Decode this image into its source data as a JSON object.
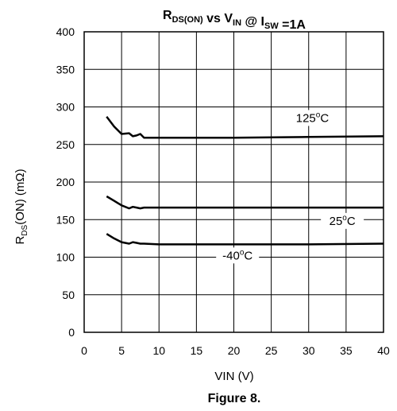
{
  "chart_data": {
    "type": "line",
    "title": {
      "parts": [
        {
          "text": "R",
          "sub": "DS(ON)"
        },
        {
          "text": " vs V",
          "sub": "IN"
        },
        {
          "text": " @ I",
          "sub": "SW"
        },
        {
          "text": " =1A",
          "sub": ""
        }
      ]
    },
    "xlabel": "VIN (V)",
    "ylabel": {
      "main": "R",
      "sub": "DS",
      "rest": "(ON) (mΩ)"
    },
    "xlim": [
      0,
      40
    ],
    "ylim": [
      0,
      400
    ],
    "x_ticks": [
      0,
      5,
      10,
      15,
      20,
      25,
      30,
      35,
      40
    ],
    "y_ticks": [
      0,
      50,
      100,
      150,
      200,
      250,
      300,
      350,
      400
    ],
    "grid": true,
    "line_color": "#000000",
    "series": [
      {
        "label": {
          "base": "125",
          "sup": "o",
          "unit": "C",
          "x": 30.5,
          "y": 280
        },
        "points": [
          [
            3,
            287
          ],
          [
            4,
            274
          ],
          [
            5,
            264
          ],
          [
            6,
            265
          ],
          [
            6.5,
            261
          ],
          [
            7,
            262
          ],
          [
            7.5,
            264
          ],
          [
            8,
            259
          ],
          [
            10,
            259
          ],
          [
            20,
            259
          ],
          [
            30,
            260
          ],
          [
            40,
            261
          ]
        ]
      },
      {
        "label": {
          "base": "25",
          "sup": "o",
          "unit": "C",
          "x": 34.5,
          "y": 143
        },
        "points": [
          [
            3,
            181
          ],
          [
            4,
            175
          ],
          [
            5,
            169
          ],
          [
            6,
            165
          ],
          [
            6.5,
            167
          ],
          [
            7,
            166
          ],
          [
            7.5,
            165
          ],
          [
            8,
            166
          ],
          [
            10,
            166
          ],
          [
            20,
            166
          ],
          [
            30,
            166
          ],
          [
            40,
            166
          ]
        ]
      },
      {
        "label": {
          "base": "-40",
          "sup": "o",
          "unit": "C",
          "x": 20.5,
          "y": 97
        },
        "points": [
          [
            3,
            131
          ],
          [
            4,
            125
          ],
          [
            5,
            120
          ],
          [
            6,
            118
          ],
          [
            6.5,
            120
          ],
          [
            7,
            119
          ],
          [
            7.5,
            118
          ],
          [
            8,
            118
          ],
          [
            10,
            117
          ],
          [
            20,
            117
          ],
          [
            30,
            117
          ],
          [
            40,
            118
          ]
        ]
      }
    ]
  },
  "caption": "Figure 8."
}
